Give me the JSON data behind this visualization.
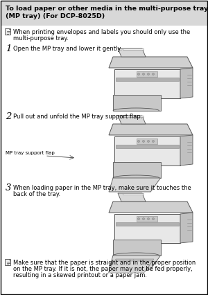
{
  "bg_color": "#ffffff",
  "border_color": "#000000",
  "title_line1": "To load paper or other media in the multi-purpose tray",
  "title_line2": "(MP tray) (For DCP-8025D)",
  "note1_line1": "When printing envelopes and labels you should only use the",
  "note1_line2": "multi-purpose tray.",
  "step1_num": "1",
  "step1_text": "Open the MP tray and lower it gently.",
  "step2_num": "2",
  "step2_text": "Pull out and unfold the MP tray support flap.",
  "step2_label": "MP tray support flap",
  "step3_num": "3",
  "step3_text_line1": "When loading paper in the MP tray, make sure it touches the",
  "step3_text_line2": "back of the tray.",
  "note2_line1": "Make sure that the paper is straight and in the proper position",
  "note2_line2": "on the MP tray. If it is not, the paper may not be fed properly,",
  "note2_line3": "resulting in a skewed printout or a paper jam.",
  "title_fontsize": 6.8,
  "body_fontsize": 6.0,
  "step_num_fontsize": 9.5,
  "label_fontsize": 5.0,
  "text_color": "#000000",
  "title_bg": "#d8d8d8",
  "printer_body": "#e8e8e8",
  "printer_dark": "#c0c0c0",
  "printer_outline": "#555555",
  "printer_lid": "#d0d0d0",
  "paper_fill": "#b8b8b8",
  "tray_fill": "#c8c8c8"
}
